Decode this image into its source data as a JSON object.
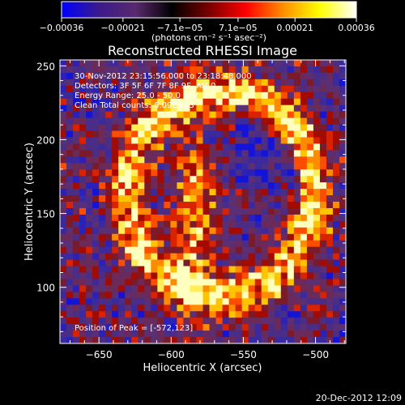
{
  "chart_data": {
    "type": "heatmap",
    "title": "Reconstructed RHESSI Image",
    "xlabel": "Heliocentric X (arcsec)",
    "ylabel": "Heliocentric Y (arcsec)",
    "xlim": [
      -677,
      -479
    ],
    "ylim": [
      62,
      254
    ],
    "xticks": [
      -650,
      -600,
      -550,
      -500
    ],
    "xtick_labels": [
      "−650",
      "−600",
      "−550",
      "−500"
    ],
    "yticks": [
      100,
      150,
      200,
      250
    ],
    "ytick_labels": [
      "100",
      "150",
      "200",
      "250"
    ],
    "colorbar": {
      "label": "(photons cm⁻² s⁻¹ asec⁻²)",
      "range": [
        -0.00036,
        0.00036
      ],
      "ticks": [
        -0.00036,
        -0.00021,
        -7.1e-05,
        7.1e-05,
        0.00021,
        0.00036
      ],
      "tick_labels": [
        "−0.00036",
        "−0.00021",
        "−7.1e−05",
        "7.1e−05",
        "0.00021",
        "0.00036"
      ],
      "colors": [
        "#0000ff",
        "#3a1a8c",
        "#5a2a6e",
        "#000000",
        "#7a0000",
        "#ff0000",
        "#ff8c00",
        "#ffff00",
        "#ffffff"
      ]
    },
    "annotations": [
      "30-Nov-2012 23:15:56.000 to 23:18:48.000",
      "Detectors: 3F 5F 6F 7F 8F 9F, Att 0",
      "Energy Range: 25.0 - 50.0 keV",
      "Clean    Total counts: 6.09E+03"
    ],
    "peak_label": "Position of Peak = [-572,123]",
    "peak": [
      -572,
      123
    ],
    "grid": false
  },
  "footer": {
    "date": "20-Dec-2012 12:09"
  }
}
